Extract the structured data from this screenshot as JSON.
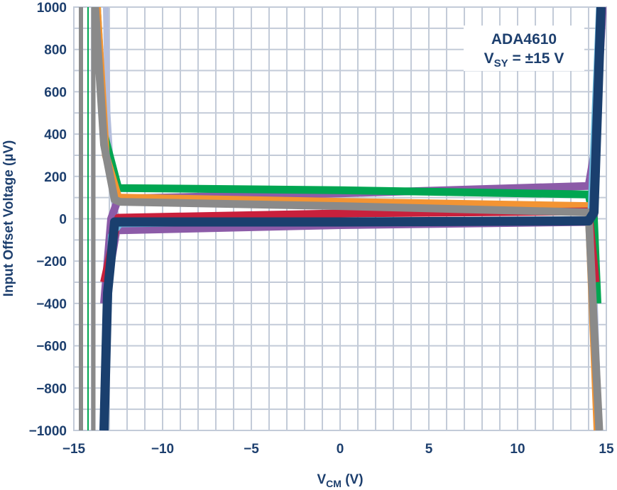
{
  "chart_data": {
    "type": "line",
    "annotation": {
      "line1": "ADA4610",
      "line2_main": "V",
      "line2_sub": "SY",
      "line2_rest": " = ±15 V"
    },
    "xlabel": {
      "main": "V",
      "sub": "CM",
      "rest": " (V)"
    },
    "ylabel": "Input Offset Voltage (µV)",
    "xlim": [
      -15,
      15
    ],
    "ylim": [
      -1000,
      1000
    ],
    "x_ticks": [
      -15,
      -10,
      -5,
      0,
      5,
      10,
      15
    ],
    "x_tick_labels": [
      "−15",
      "−10",
      "−5",
      "0",
      "5",
      "10",
      "15"
    ],
    "y_ticks": [
      -1000,
      -800,
      -600,
      -400,
      -200,
      0,
      200,
      400,
      600,
      800,
      1000
    ],
    "y_tick_labels": [
      "−1000",
      "−800",
      "−600",
      "−400",
      "−200",
      "0",
      "200",
      "400",
      "600",
      "800",
      "1000"
    ],
    "grid": true,
    "grid_x_step": 1,
    "grid_y_step": 100,
    "series": [
      {
        "color": "#8a8a8a",
        "width": 6,
        "points": [
          [
            -14.6,
            1000
          ],
          [
            -14.6,
            -1000
          ]
        ]
      },
      {
        "color": "#8a8a8a",
        "width": 6,
        "points": [
          [
            -13.9,
            1000
          ],
          [
            -13.9,
            -1000
          ]
        ]
      },
      {
        "color": "#00a651",
        "width": 2,
        "points": [
          [
            -14.2,
            1000
          ],
          [
            -14.2,
            -1000
          ]
        ]
      },
      {
        "color": "#b4bedc",
        "width": 8,
        "points": [
          [
            -13.2,
            1000
          ],
          [
            -13.1,
            500
          ],
          [
            -12.8,
            100
          ],
          [
            -12.5,
            -30
          ],
          [
            0,
            -20
          ],
          [
            14.2,
            -10
          ],
          [
            14.6,
            -1000
          ]
        ]
      },
      {
        "color": "#8c5ba8",
        "width": 11,
        "points": [
          [
            -13.3,
            -1000
          ],
          [
            -13.1,
            -300
          ],
          [
            -12.6,
            -55
          ],
          [
            0,
            -30
          ],
          [
            14.0,
            -15
          ],
          [
            14.3,
            -5
          ],
          [
            14.7,
            1000
          ]
        ]
      },
      {
        "color": "#8c5ba8",
        "width": 11,
        "points": [
          [
            -13.3,
            -400
          ],
          [
            -12.9,
            0
          ],
          [
            -12.5,
            95
          ],
          [
            0,
            120
          ],
          [
            14.0,
            155
          ],
          [
            14.3,
            300
          ],
          [
            14.8,
            1000
          ]
        ]
      },
      {
        "color": "#00a651",
        "width": 11,
        "points": [
          [
            -13.7,
            1000
          ],
          [
            -13.3,
            400
          ],
          [
            -12.5,
            145
          ],
          [
            0,
            135
          ],
          [
            14.0,
            115
          ],
          [
            14.3,
            0
          ],
          [
            14.5,
            -400
          ]
        ]
      },
      {
        "color": "#f39433",
        "width": 11,
        "points": [
          [
            -13.7,
            1000
          ],
          [
            -13.2,
            300
          ],
          [
            -12.5,
            100
          ],
          [
            0,
            80
          ],
          [
            14.0,
            60
          ],
          [
            14.5,
            -1000
          ]
        ]
      },
      {
        "color": "#c8203c",
        "width": 11,
        "points": [
          [
            -13.3,
            -300
          ],
          [
            -12.5,
            5
          ],
          [
            0,
            25
          ],
          [
            14.0,
            35
          ],
          [
            14.4,
            -300
          ]
        ]
      },
      {
        "color": "#6fb9dd",
        "width": 9,
        "points": [
          [
            -13.3,
            -1000
          ],
          [
            -12.9,
            -80
          ],
          [
            -12.4,
            -25
          ],
          [
            0,
            -12
          ],
          [
            14.1,
            -5
          ],
          [
            14.6,
            1000
          ]
        ]
      },
      {
        "color": "#8a8a8a",
        "width": 11,
        "points": [
          [
            -13.8,
            1000
          ],
          [
            -13.3,
            350
          ],
          [
            -12.7,
            90
          ],
          [
            -12.4,
            80
          ],
          [
            0,
            60
          ],
          [
            14.0,
            30
          ],
          [
            14.3,
            -500
          ],
          [
            14.6,
            -1000
          ]
        ]
      },
      {
        "color": "#1a3f6e",
        "width": 13,
        "points": [
          [
            -13.3,
            -1000
          ],
          [
            -13.1,
            -350
          ],
          [
            -12.7,
            -15
          ],
          [
            0,
            -15
          ],
          [
            14.0,
            -10
          ],
          [
            14.3,
            30
          ],
          [
            14.7,
            1000
          ]
        ]
      }
    ]
  }
}
